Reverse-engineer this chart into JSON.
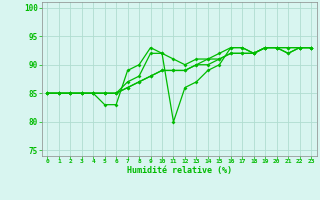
{
  "xlabel": "Humidité relative (%)",
  "xlim": [
    -0.5,
    23.5
  ],
  "ylim": [
    74,
    101
  ],
  "yticks": [
    75,
    80,
    85,
    90,
    95,
    100
  ],
  "xticks": [
    0,
    1,
    2,
    3,
    4,
    5,
    6,
    7,
    8,
    9,
    10,
    11,
    12,
    13,
    14,
    15,
    16,
    17,
    18,
    19,
    20,
    21,
    22,
    23
  ],
  "background_color": "#d8f5f0",
  "grid_color": "#b0ddd0",
  "line_color": "#00bb00",
  "line1_x": [
    0,
    1,
    2,
    3,
    4,
    5,
    6,
    7,
    8,
    9,
    10,
    11,
    12,
    13,
    14,
    15,
    16,
    17,
    18,
    19,
    20,
    21,
    22,
    23
  ],
  "line1_y": [
    85,
    85,
    85,
    85,
    85,
    83,
    83,
    89,
    90,
    93,
    92,
    80,
    86,
    87,
    89,
    90,
    93,
    93,
    92,
    93,
    93,
    93,
    93,
    93
  ],
  "line2_x": [
    0,
    1,
    2,
    3,
    4,
    5,
    6,
    7,
    8,
    9,
    10,
    11,
    12,
    13,
    14,
    15,
    16,
    17,
    18,
    19,
    20,
    21,
    22,
    23
  ],
  "line2_y": [
    85,
    85,
    85,
    85,
    85,
    85,
    85,
    86,
    87,
    88,
    89,
    89,
    89,
    90,
    91,
    91,
    92,
    92,
    92,
    93,
    93,
    92,
    93,
    93
  ],
  "line3_x": [
    0,
    1,
    2,
    3,
    4,
    5,
    6,
    7,
    8,
    9,
    10,
    11,
    12,
    13,
    14,
    15,
    16,
    17,
    18,
    19,
    20,
    21,
    22,
    23
  ],
  "line3_y": [
    85,
    85,
    85,
    85,
    85,
    85,
    85,
    86,
    87,
    88,
    89,
    89,
    89,
    90,
    90,
    91,
    92,
    92,
    92,
    93,
    93,
    93,
    93,
    93
  ],
  "line4_x": [
    0,
    1,
    2,
    3,
    4,
    5,
    6,
    7,
    8,
    9,
    10,
    11,
    12,
    13,
    14,
    15,
    16,
    17,
    18,
    19,
    20,
    21,
    22,
    23
  ],
  "line4_y": [
    85,
    85,
    85,
    85,
    85,
    85,
    85,
    87,
    88,
    92,
    92,
    91,
    90,
    91,
    91,
    92,
    93,
    93,
    92,
    93,
    93,
    92,
    93,
    93
  ]
}
